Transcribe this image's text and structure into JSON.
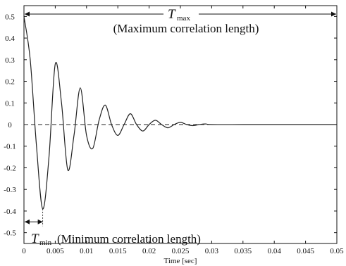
{
  "chart_data": {
    "type": "line",
    "title": "",
    "xlabel": "Time [sec]",
    "ylabel": "",
    "xlim": [
      0,
      0.05
    ],
    "ylim": [
      -0.55,
      0.55
    ],
    "grid": false,
    "x_ticks": [
      0,
      0.005,
      0.01,
      0.015,
      0.02,
      0.025,
      0.03,
      0.035,
      0.04,
      0.045,
      0.05
    ],
    "x_tick_labels": [
      "0",
      "0.005",
      "0.01",
      "0.015",
      "0.02",
      "0.025",
      "0.03",
      "0.035",
      "0.04",
      "0.045",
      "0.05"
    ],
    "y_ticks": [
      -0.5,
      -0.4,
      -0.3,
      -0.2,
      -0.1,
      0,
      0.1,
      0.2,
      0.3,
      0.4,
      0.5
    ],
    "y_tick_labels": [
      "-0.5",
      "-0.4",
      "-0.3",
      "-0.2",
      "-0.1",
      "0",
      "0.1",
      "0.2",
      "0.3",
      "0.4",
      "0.5"
    ],
    "series": [
      {
        "x": [
          0,
          0.001,
          0.002,
          0.003,
          0.004,
          0.005,
          0.006,
          0.007,
          0.008,
          0.009,
          0.01,
          0.011,
          0.012,
          0.013,
          0.014,
          0.015,
          0.016,
          0.017,
          0.018,
          0.019,
          0.02,
          0.021,
          0.022,
          0.023,
          0.024,
          0.025,
          0.026,
          0.027,
          0.028,
          0.029,
          0.03,
          0.035,
          0.04,
          0.045,
          0.05
        ],
        "y": [
          0.5,
          0.3,
          -0.1,
          -0.39,
          -0.15,
          0.28,
          0.1,
          -0.21,
          -0.05,
          0.17,
          -0.05,
          -0.11,
          0.02,
          0.09,
          0.0,
          -0.05,
          0.0,
          0.05,
          0.0,
          -0.03,
          0.0,
          0.02,
          0.0,
          -0.015,
          0.0,
          0.01,
          0.0,
          -0.005,
          0.0,
          0.003,
          0.0,
          0.0,
          0.0,
          0.0,
          0.0
        ],
        "color": "#222222"
      },
      {
        "x": [
          0,
          0.05
        ],
        "y": [
          0,
          0
        ],
        "color": "#222222",
        "style": "dashed"
      }
    ],
    "annotations": {
      "tmax_symbol": "T",
      "tmax_sub": "max",
      "tmax_text": "(Maximum correlation length)",
      "tmax_range": [
        0,
        0.05
      ],
      "tmin_symbol": "T",
      "tmin_sub": "min",
      "tmin_text": "(Minimum correlation length)",
      "tmin_range": [
        0,
        0.003
      ]
    }
  }
}
